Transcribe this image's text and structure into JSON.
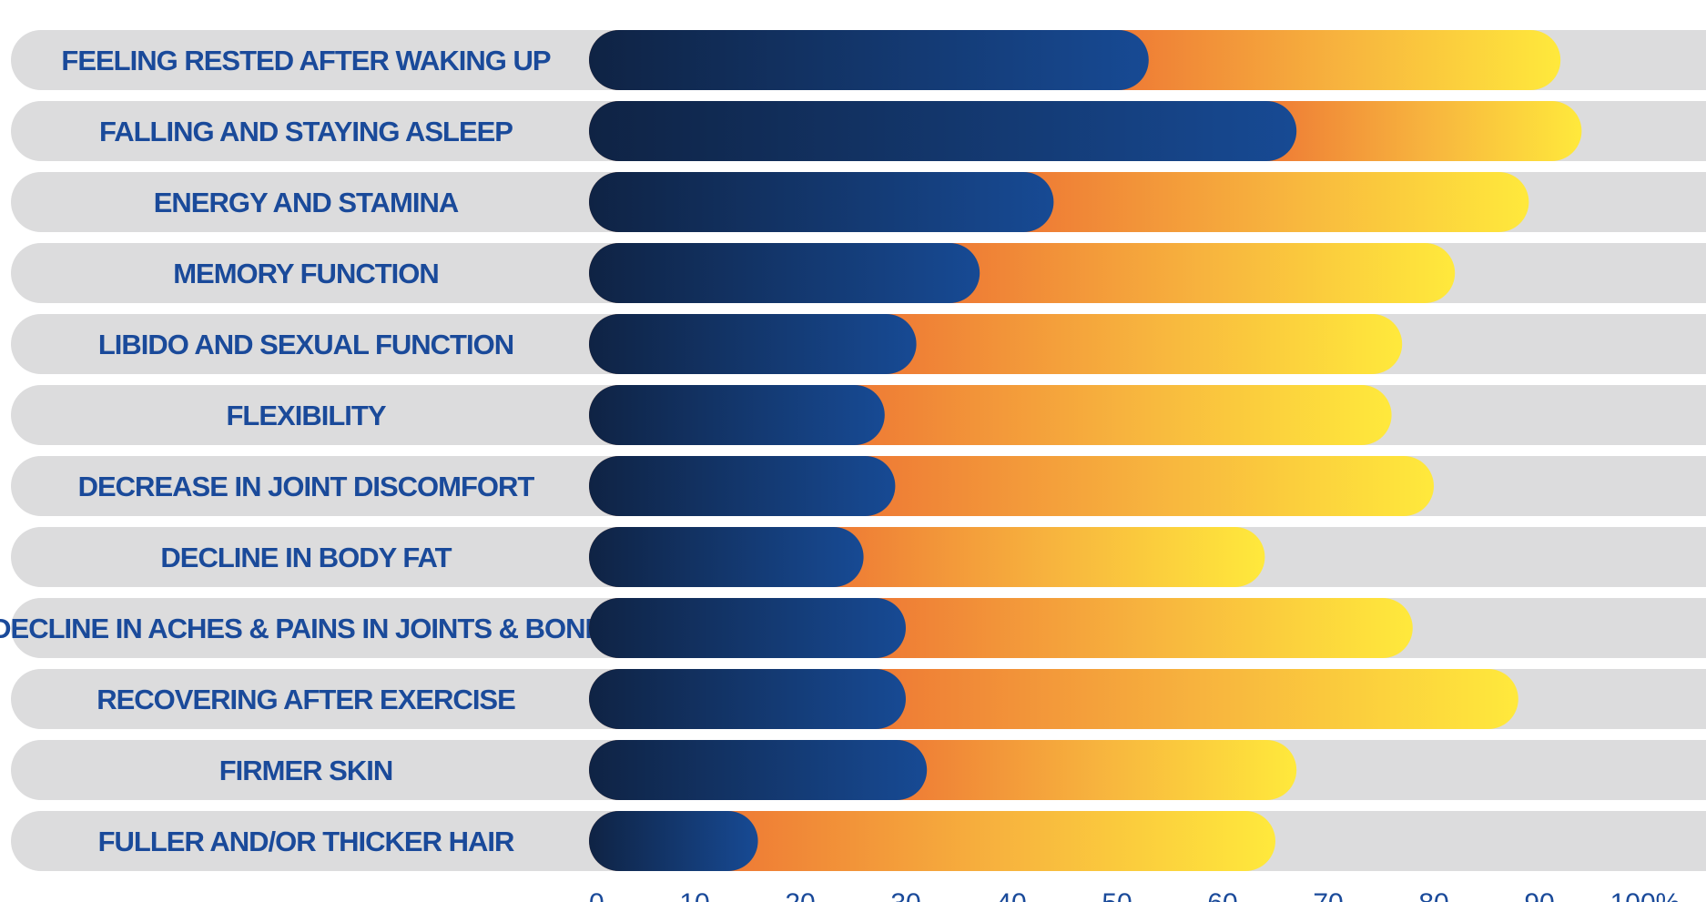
{
  "chart_data": {
    "type": "bar",
    "orientation": "horizontal",
    "stacked": false,
    "categories": [
      "FEELING RESTED AFTER WAKING UP",
      "FALLING AND STAYING ASLEEP",
      "ENERGY AND STAMINA",
      "MEMORY FUNCTION",
      "LIBIDO AND SEXUAL FUNCTION",
      "FLEXIBILITY",
      "DECREASE IN JOINT DISCOMFORT",
      "DECLINE IN BODY FAT",
      "DECLINE IN ACHES & PAINS IN JOINTS & BONES",
      "RECOVERING AFTER EXERCISE",
      "FIRMER SKIN",
      "FULLER AND/OR THICKER HAIR"
    ],
    "series": [
      {
        "values": [
          53,
          67,
          44,
          37,
          31,
          28,
          29,
          26,
          30,
          30,
          32,
          16
        ]
      },
      {
        "values": [
          92,
          94,
          89,
          82,
          77,
          76,
          80,
          64,
          78,
          88,
          67,
          65
        ]
      }
    ],
    "xlim": [
      0,
      105
    ],
    "ticks": [
      "0",
      "10",
      "20",
      "30",
      "40",
      "50",
      "60",
      "70",
      "80",
      "90",
      "100%"
    ],
    "grid": false,
    "legend": "none",
    "colors": {
      "track": "#dcdcdd",
      "blue_start": "#0f2344",
      "blue_end": "#174a94",
      "orange_start": "#ee7a35",
      "orange_mid": "#f7b33e",
      "yellow_end": "#ffe93c",
      "label_text": "#1a4a9a",
      "tick_text": "#1a4a9a"
    }
  }
}
